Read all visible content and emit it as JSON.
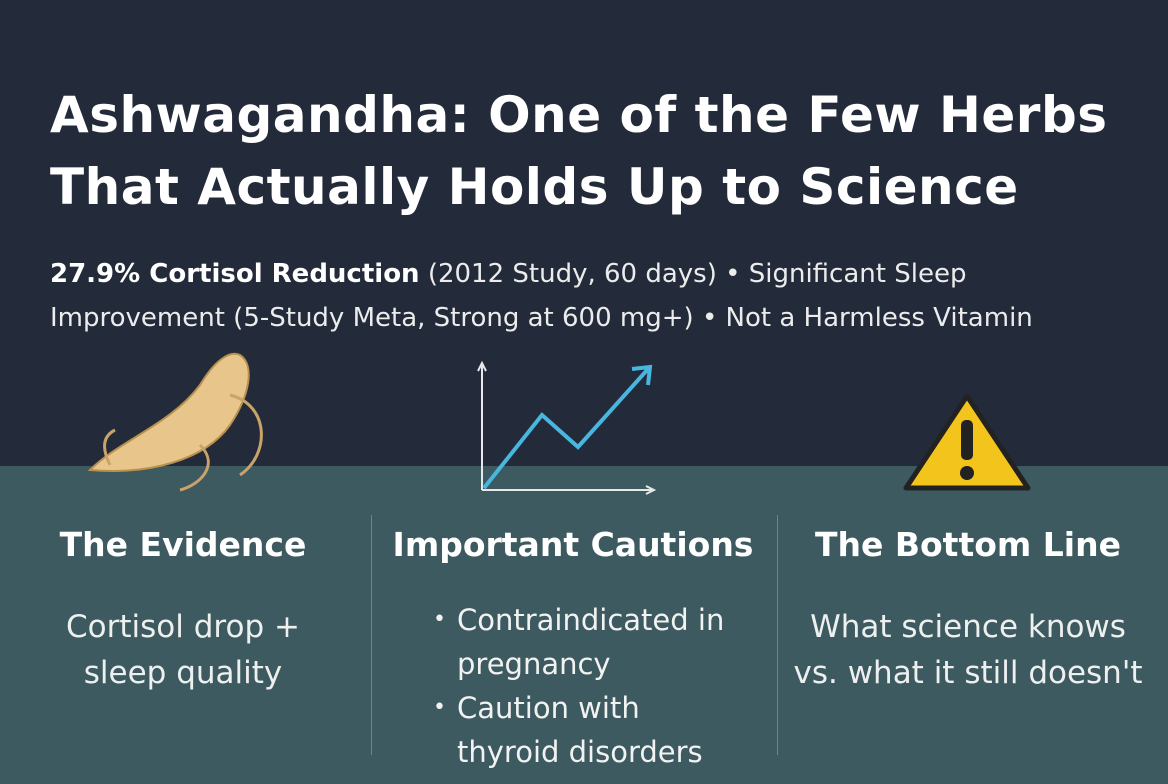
{
  "header": {
    "title_lines": [
      "Ashwagandha: One of the Few Herbs",
      "That Actually Holds Up to Science"
    ],
    "subtitle": {
      "highlight": "27.9% Cortisol Reduction",
      "items": [
        "(2012 Study, 60 days)",
        "Significant Sleep Improvement",
        "(5-Study Meta, Strong at 600 mg+)",
        "Not a Harmless Vitamin"
      ],
      "separator": "•"
    }
  },
  "columns": [
    {
      "heading": "The Evidence",
      "body": "Cortisol drop + sleep quality"
    },
    {
      "heading": "Important Cautions",
      "bullet": "•",
      "items": [
        "Contraindicated in pregnancy",
        "Caution with thyroid disorders"
      ]
    },
    {
      "heading": "The Bottom Line",
      "body": "What science knows vs. what it still doesn't"
    }
  ]
}
